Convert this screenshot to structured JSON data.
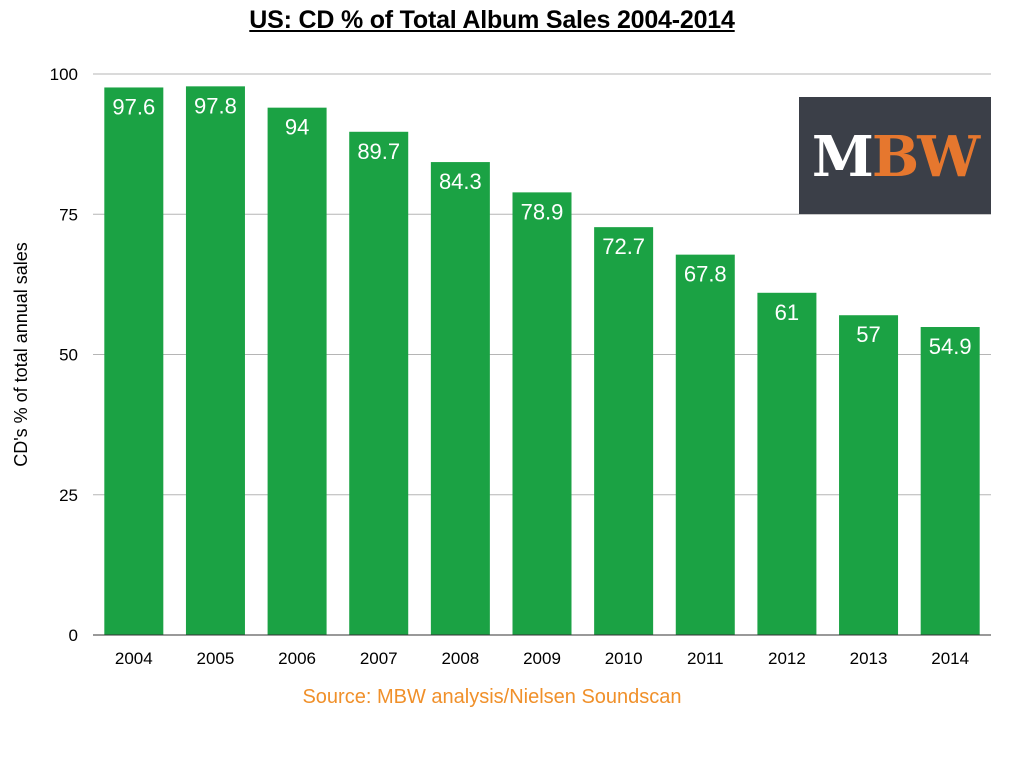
{
  "title": "US: CD % of Total Album Sales 2004-2014",
  "source": "Source: MBW analysis/Nielsen Soundscan",
  "logo": {
    "m": "M",
    "bw": "BW"
  },
  "colors": {
    "bar": "#1ba244",
    "grid": "#b5b5b5",
    "source": "#f0902a",
    "logo_bg": "#3b3f48",
    "logo_accent": "#e6772e"
  },
  "chart_data": {
    "type": "bar",
    "title": "US: CD % of Total Album Sales 2004-2014",
    "xlabel": "",
    "ylabel": "CD's % of total annual sales",
    "categories": [
      "2004",
      "2005",
      "2006",
      "2007",
      "2008",
      "2009",
      "2010",
      "2011",
      "2012",
      "2013",
      "2014"
    ],
    "values": [
      97.6,
      97.8,
      94,
      89.7,
      84.3,
      78.9,
      72.7,
      67.8,
      61,
      57,
      54.9
    ],
    "data_labels": [
      "97.6",
      "97.8",
      "94",
      "89.7",
      "84.3",
      "78.9",
      "72.7",
      "67.8",
      "61",
      "57",
      "54.9"
    ],
    "ylim": [
      0,
      100
    ],
    "yticks": [
      0,
      25,
      50,
      75,
      100
    ],
    "grid": true
  }
}
